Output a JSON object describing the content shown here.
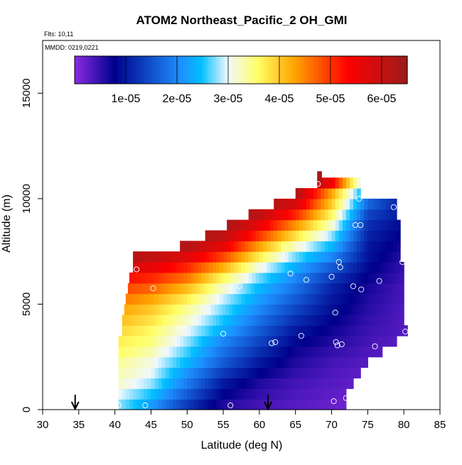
{
  "chart_data": {
    "type": "heatmap",
    "title": "ATOM2 Northeast_Pacific_2 OH_GMI",
    "notes": [
      "Flts: 10,11",
      "MMDD: 0219,0221"
    ],
    "xlabel": "Latitude (deg N)",
    "ylabel": "Altitude (m)",
    "xlim": [
      30,
      85
    ],
    "ylim": [
      0,
      17500
    ],
    "x_ticks": [
      30,
      35,
      40,
      45,
      50,
      55,
      60,
      65,
      70,
      75,
      80,
      85
    ],
    "y_ticks": [
      0,
      5000,
      10000,
      15000
    ],
    "colorbar": {
      "min": 0,
      "max": 6.5e-05,
      "ticks": [
        1e-05,
        2e-05,
        3e-05,
        4e-05,
        5e-05,
        6e-05
      ],
      "tick_labels": [
        "1e-05",
        "2e-05",
        "3e-05",
        "4e-05",
        "5e-05",
        "6e-05"
      ],
      "colors": [
        "#8a2be2",
        "#00008b",
        "#1e90ff",
        "#00bfff",
        "#f0f8ff",
        "#ffff66",
        "#ffa500",
        "#ff0000",
        "#9b1c1c"
      ],
      "color_stops": [
        0,
        0.12,
        0.32,
        0.38,
        0.46,
        0.55,
        0.66,
        0.82,
        1
      ]
    },
    "arrows_lat": [
      34.5,
      61.2
    ],
    "field": {
      "row_height_m": 500,
      "rows": [
        {
          "alt": 0,
          "lat_min": 40.5,
          "lat_max": 72
        },
        {
          "alt": 500,
          "lat_min": 40.5,
          "lat_max": 72
        },
        {
          "alt": 1000,
          "lat_min": 40.5,
          "lat_max": 73
        },
        {
          "alt": 1500,
          "lat_min": 40.5,
          "lat_max": 74
        },
        {
          "alt": 2000,
          "lat_min": 40.5,
          "lat_max": 75
        },
        {
          "alt": 2500,
          "lat_min": 40.5,
          "lat_max": 77
        },
        {
          "alt": 3000,
          "lat_min": 40.5,
          "lat_max": 79
        },
        {
          "alt": 3500,
          "lat_min": 41,
          "lat_max": 80.5
        },
        {
          "alt": 4000,
          "lat_min": 41,
          "lat_max": 80
        },
        {
          "alt": 4500,
          "lat_min": 41.3,
          "lat_max": 80
        },
        {
          "alt": 5000,
          "lat_min": 41.5,
          "lat_max": 80
        },
        {
          "alt": 5500,
          "lat_min": 41.8,
          "lat_max": 80
        },
        {
          "alt": 6000,
          "lat_min": 42,
          "lat_max": 80
        },
        {
          "alt": 6500,
          "lat_min": 42.5,
          "lat_max": 80
        },
        {
          "alt": 7000,
          "lat_min": 42.5,
          "lat_max": 79.5
        },
        {
          "alt": 7500,
          "lat_min": 49,
          "lat_max": 79.5
        },
        {
          "alt": 8000,
          "lat_min": 52.5,
          "lat_max": 79.5
        },
        {
          "alt": 8500,
          "lat_min": 55.5,
          "lat_max": 79.5
        },
        {
          "alt": 9000,
          "lat_min": 58.5,
          "lat_max": 79
        },
        {
          "alt": 9500,
          "lat_min": 62,
          "lat_max": 79
        },
        {
          "alt": 10000,
          "lat_min": 65,
          "lat_max": 74
        },
        {
          "alt": 10500,
          "lat_min": 68,
          "lat_max": 74
        },
        {
          "alt": 10800,
          "lat_min": 68,
          "lat_max": 68.6
        }
      ],
      "columns": [
        {
          "lat": 40.5,
          "levels": [
            2.8e-05,
            3e-05,
            3.2e-05,
            3.3e-05,
            3.4e-05,
            3.6e-05,
            3.7e-05,
            3.9e-05,
            4.1e-05,
            4.3e-05,
            4.6e-05,
            4.9e-05,
            5.3e-05,
            5.8e-05,
            6.2e-05,
            6.4e-05,
            6.5e-05,
            6.5e-05,
            6.5e-05,
            6.5e-05,
            6.5e-05,
            6.5e-05,
            6.5e-05
          ]
        },
        {
          "lat": 45,
          "levels": [
            2.2e-05,
            2.5e-05,
            2.8e-05,
            3e-05,
            3.1e-05,
            3.3e-05,
            3.5e-05,
            3.6e-05,
            3.8e-05,
            4e-05,
            4.3e-05,
            4.7e-05,
            5.1e-05,
            5.6e-05,
            6.1e-05,
            6.3e-05,
            6.5e-05,
            6.5e-05,
            6.5e-05,
            6.5e-05,
            6.5e-05,
            6.5e-05,
            6.5e-05
          ]
        },
        {
          "lat": 50,
          "levels": [
            1.3e-05,
            1.6e-05,
            1.9e-05,
            2.1e-05,
            2.4e-05,
            2.6e-05,
            2.8e-05,
            3e-05,
            3.2e-05,
            3.4e-05,
            3.7e-05,
            4.1e-05,
            4.6e-05,
            5.1e-05,
            5.7e-05,
            6.2e-05,
            6.4e-05,
            6.5e-05,
            6.5e-05,
            6.5e-05,
            6.5e-05,
            6.5e-05,
            6.5e-05
          ]
        },
        {
          "lat": 55,
          "levels": [
            6e-06,
            8e-06,
            1e-05,
            1.3e-05,
            1.6e-05,
            1.8e-05,
            2e-05,
            2.3e-05,
            2.5e-05,
            2.7e-05,
            2.9e-05,
            3.2e-05,
            3.6e-05,
            4.2e-05,
            4.9e-05,
            5.6e-05,
            6.1e-05,
            6.4e-05,
            6.5e-05,
            6.5e-05,
            6.5e-05,
            6.5e-05,
            6.5e-05
          ]
        },
        {
          "lat": 60,
          "levels": [
            4e-06,
            5e-06,
            6e-06,
            8e-06,
            1e-05,
            1.2e-05,
            1.4e-05,
            1.6e-05,
            1.8e-05,
            2e-05,
            2.2e-05,
            2.4e-05,
            2.7e-05,
            3.1e-05,
            3.7e-05,
            4.3e-05,
            5e-05,
            5.6e-05,
            6.1e-05,
            6.4e-05,
            6.5e-05,
            6.5e-05,
            6.5e-05
          ]
        },
        {
          "lat": 65,
          "levels": [
            3e-06,
            3.5e-06,
            4e-06,
            5e-06,
            6e-06,
            7e-06,
            8.5e-06,
            1e-05,
            1.2e-05,
            1.4e-05,
            1.6e-05,
            1.8e-05,
            2e-05,
            2.3e-05,
            2.7e-05,
            3.2e-05,
            3.8e-05,
            4.4e-05,
            5.1e-05,
            5.8e-05,
            6.3e-05,
            6.5e-05,
            6.5e-05
          ]
        },
        {
          "lat": 70,
          "levels": [
            2e-06,
            2.5e-06,
            3e-06,
            3.5e-06,
            4e-06,
            5e-06,
            6e-06,
            7e-06,
            8e-06,
            9e-06,
            1e-05,
            1.1e-05,
            1.3e-05,
            1.6e-05,
            2e-05,
            2.4e-05,
            2.8e-05,
            3.2e-05,
            3.6e-05,
            4e-05,
            4.3e-05,
            5.5e-05,
            6.2e-05
          ]
        },
        {
          "lat": 75,
          "levels": [
            1e-06,
            1.5e-06,
            2e-06,
            2.5e-06,
            3e-06,
            3.5e-06,
            4e-06,
            4.5e-06,
            5e-06,
            5.5e-06,
            6e-06,
            6.5e-06,
            7.5e-06,
            8.5e-06,
            9.5e-06,
            1e-05,
            1.1e-05,
            1.2e-05,
            1.4e-05,
            1.7e-05,
            2e-05,
            2.3e-05,
            2.5e-05
          ]
        },
        {
          "lat": 80.5,
          "levels": [
            1e-06,
            1e-06,
            1e-06,
            1.5e-06,
            1.5e-06,
            2e-06,
            2.5e-06,
            3e-06,
            3e-06,
            3e-06,
            3.5e-06,
            3.5e-06,
            4e-06,
            4.5e-06,
            5e-06,
            6e-06,
            7e-06,
            8e-06,
            9e-06,
            9e-06,
            1e-05,
            1e-05,
            1e-05
          ]
        }
      ]
    },
    "observations": [
      {
        "lat": 40.5,
        "alt": 200
      },
      {
        "lat": 44.2,
        "alt": 200
      },
      {
        "lat": 56,
        "alt": 200
      },
      {
        "lat": 70.3,
        "alt": 400
      },
      {
        "lat": 72,
        "alt": 550
      },
      {
        "lat": 43,
        "alt": 6650
      },
      {
        "lat": 45.3,
        "alt": 5750
      },
      {
        "lat": 49,
        "alt": 3850
      },
      {
        "lat": 55,
        "alt": 3600
      },
      {
        "lat": 57.2,
        "alt": 5850
      },
      {
        "lat": 61.7,
        "alt": 3150
      },
      {
        "lat": 62.2,
        "alt": 3200
      },
      {
        "lat": 63.4,
        "alt": 7650
      },
      {
        "lat": 64.3,
        "alt": 6450
      },
      {
        "lat": 65.8,
        "alt": 3500
      },
      {
        "lat": 66.5,
        "alt": 6150
      },
      {
        "lat": 68.1,
        "alt": 10700
      },
      {
        "lat": 70,
        "alt": 6300
      },
      {
        "lat": 70.5,
        "alt": 4600
      },
      {
        "lat": 70.6,
        "alt": 3200
      },
      {
        "lat": 70.8,
        "alt": 3050
      },
      {
        "lat": 71,
        "alt": 7000
      },
      {
        "lat": 71.2,
        "alt": 6750
      },
      {
        "lat": 71.4,
        "alt": 3100
      },
      {
        "lat": 73,
        "alt": 5850
      },
      {
        "lat": 73.3,
        "alt": 8750
      },
      {
        "lat": 73.8,
        "alt": 10000
      },
      {
        "lat": 74,
        "alt": 8750
      },
      {
        "lat": 74.1,
        "alt": 5700
      },
      {
        "lat": 76,
        "alt": 3000
      },
      {
        "lat": 76.6,
        "alt": 6100
      },
      {
        "lat": 78.6,
        "alt": 9600
      },
      {
        "lat": 79.8,
        "alt": 7000
      },
      {
        "lat": 80.2,
        "alt": 3700
      }
    ]
  }
}
